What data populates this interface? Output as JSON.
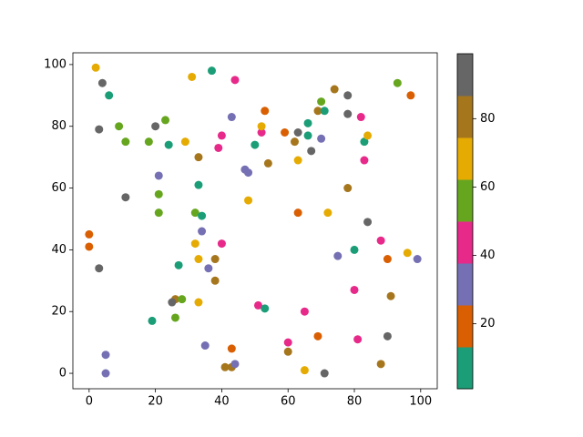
{
  "chart_data": {
    "type": "scatter",
    "x": [
      2,
      4,
      6,
      3,
      9,
      11,
      18,
      20,
      23,
      24,
      29,
      31,
      37,
      44,
      43,
      40,
      39,
      33,
      21,
      11,
      21,
      21,
      33,
      32,
      34,
      34,
      32,
      40,
      38,
      33,
      36,
      27,
      38,
      0,
      0,
      3,
      26,
      25,
      28,
      33,
      26,
      19,
      5,
      5,
      35,
      43,
      41,
      43,
      44,
      47,
      48,
      48,
      50,
      52,
      52,
      53,
      54,
      51,
      53,
      59,
      62,
      63,
      63,
      66,
      66,
      67,
      69,
      70,
      71,
      70,
      74,
      78,
      78,
      82,
      83,
      84,
      83,
      93,
      97,
      63,
      72,
      78,
      84,
      80,
      75,
      88,
      90,
      96,
      99,
      91,
      80,
      65,
      60,
      60,
      69,
      81,
      90,
      65,
      71,
      88
    ],
    "y": [
      99,
      94,
      90,
      79,
      80,
      75,
      75,
      80,
      82,
      74,
      75,
      96,
      98,
      95,
      83,
      77,
      73,
      70,
      64,
      57,
      58,
      52,
      61,
      52,
      51,
      46,
      42,
      42,
      37,
      37,
      34,
      35,
      30,
      45,
      41,
      34,
      24,
      23,
      24,
      23,
      18,
      17,
      6,
      0,
      9,
      8,
      2,
      2,
      3,
      66,
      65,
      56,
      74,
      78,
      80,
      85,
      68,
      22,
      21,
      78,
      75,
      78,
      69,
      81,
      77,
      72,
      85,
      88,
      85,
      76,
      92,
      90,
      84,
      83,
      75,
      77,
      69,
      94,
      90,
      52,
      52,
      60,
      49,
      40,
      38,
      43,
      37,
      39,
      37,
      25,
      27,
      20,
      10,
      7,
      12,
      11,
      12,
      1,
      0,
      3
    ],
    "c": [
      68,
      93,
      7,
      93,
      56,
      56,
      56,
      93,
      56,
      7,
      68,
      68,
      7,
      44,
      31,
      44,
      44,
      80,
      31,
      93,
      56,
      56,
      7,
      56,
      7,
      31,
      68,
      44,
      80,
      68,
      31,
      7,
      80,
      19,
      19,
      93,
      80,
      93,
      56,
      68,
      56,
      7,
      31,
      31,
      31,
      19,
      80,
      80,
      31,
      31,
      31,
      68,
      7,
      44,
      68,
      19,
      80,
      44,
      7,
      19,
      80,
      93,
      68,
      7,
      7,
      93,
      80,
      56,
      7,
      31,
      80,
      93,
      93,
      44,
      7,
      68,
      44,
      56,
      19,
      19,
      68,
      80,
      93,
      7,
      31,
      44,
      19,
      68,
      31,
      80,
      44,
      44,
      44,
      80,
      19,
      44,
      93,
      68,
      93,
      80
    ],
    "colormap": [
      "#1b9e77",
      "#d95f02",
      "#7570b3",
      "#e7298a",
      "#66a61e",
      "#e6ab02",
      "#a6761d",
      "#666666"
    ],
    "clim": [
      1,
      99
    ],
    "cticks": [
      20,
      40,
      60,
      80
    ],
    "xlim": [
      -4.9,
      105
    ],
    "ylim": [
      -5,
      103.8
    ],
    "xticks": [
      0,
      20,
      40,
      60,
      80,
      100
    ],
    "yticks": [
      0,
      20,
      40,
      60,
      80,
      100
    ]
  }
}
